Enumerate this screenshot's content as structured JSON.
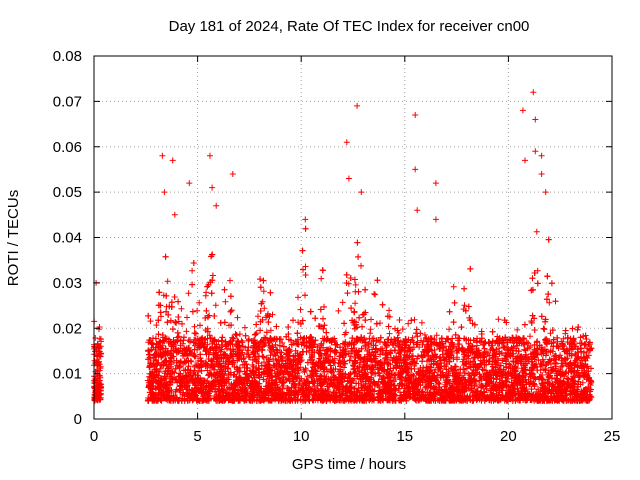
{
  "chart_data": {
    "type": "scatter",
    "title": "Day 181 of 2024, Rate Of TEC Index for receiver cn00",
    "xlabel": "GPS time / hours",
    "ylabel": "ROTI / TECUs",
    "xlim": [
      0,
      25
    ],
    "ylim": [
      0,
      0.08
    ],
    "grid": true,
    "marker": "+",
    "color": "#ff0000",
    "x_ticks": [
      0,
      5,
      10,
      15,
      20,
      25
    ],
    "x_tick_labels": [
      "0",
      "5",
      "10",
      "15",
      "20",
      "25"
    ],
    "y_ticks": [
      0,
      0.01,
      0.02,
      0.03,
      0.04,
      0.05,
      0.06,
      0.07,
      0.08
    ],
    "y_tick_labels": [
      "0",
      "0.01",
      "0.02",
      "0.03",
      "0.04",
      "0.05",
      "0.06",
      "0.07",
      "0.08"
    ],
    "coverage": [
      [
        0.0,
        0.35
      ],
      [
        2.6,
        24.0
      ]
    ],
    "outliers": [
      {
        "x": 0.1,
        "y": 0.03
      },
      {
        "x": 3.3,
        "y": 0.058
      },
      {
        "x": 3.4,
        "y": 0.05
      },
      {
        "x": 3.8,
        "y": 0.057
      },
      {
        "x": 3.9,
        "y": 0.045
      },
      {
        "x": 4.6,
        "y": 0.052
      },
      {
        "x": 5.6,
        "y": 0.058
      },
      {
        "x": 5.7,
        "y": 0.051
      },
      {
        "x": 5.9,
        "y": 0.047
      },
      {
        "x": 6.7,
        "y": 0.054
      },
      {
        "x": 10.2,
        "y": 0.044
      },
      {
        "x": 12.2,
        "y": 0.061
      },
      {
        "x": 12.3,
        "y": 0.053
      },
      {
        "x": 12.7,
        "y": 0.069
      },
      {
        "x": 12.9,
        "y": 0.05
      },
      {
        "x": 15.5,
        "y": 0.067
      },
      {
        "x": 15.5,
        "y": 0.055
      },
      {
        "x": 15.6,
        "y": 0.046
      },
      {
        "x": 16.5,
        "y": 0.052
      },
      {
        "x": 16.5,
        "y": 0.044
      },
      {
        "x": 20.7,
        "y": 0.068
      },
      {
        "x": 20.8,
        "y": 0.057
      },
      {
        "x": 21.2,
        "y": 0.072
      },
      {
        "x": 21.3,
        "y": 0.066
      },
      {
        "x": 21.3,
        "y": 0.059
      },
      {
        "x": 21.6,
        "y": 0.058
      },
      {
        "x": 21.6,
        "y": 0.054
      },
      {
        "x": 21.8,
        "y": 0.05
      }
    ],
    "bursts": [
      {
        "center": 0.2,
        "max": 0.023
      },
      {
        "center": 3.4,
        "max": 0.04
      },
      {
        "center": 4.0,
        "max": 0.035
      },
      {
        "center": 4.8,
        "max": 0.037
      },
      {
        "center": 5.6,
        "max": 0.042
      },
      {
        "center": 6.5,
        "max": 0.036
      },
      {
        "center": 8.2,
        "max": 0.035
      },
      {
        "center": 10.2,
        "max": 0.041
      },
      {
        "center": 11.0,
        "max": 0.034
      },
      {
        "center": 12.3,
        "max": 0.039
      },
      {
        "center": 12.8,
        "max": 0.045
      },
      {
        "center": 13.6,
        "max": 0.031
      },
      {
        "center": 17.2,
        "max": 0.032
      },
      {
        "center": 18.0,
        "max": 0.037
      },
      {
        "center": 21.3,
        "max": 0.045
      },
      {
        "center": 21.9,
        "max": 0.04
      }
    ]
  }
}
